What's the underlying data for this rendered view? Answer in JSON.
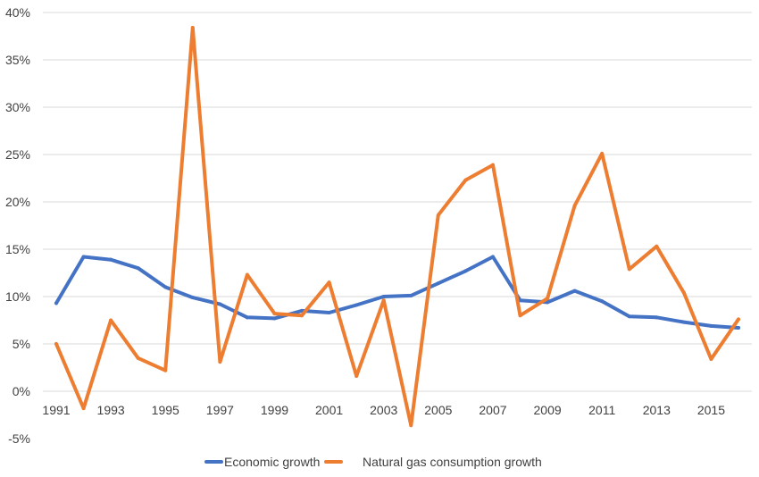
{
  "chart_data": {
    "type": "line",
    "title": "",
    "xlabel": "",
    "ylabel": "",
    "x": [
      1991,
      1992,
      1993,
      1994,
      1995,
      1996,
      1997,
      1998,
      1999,
      2000,
      2001,
      2002,
      2003,
      2004,
      2005,
      2006,
      2007,
      2008,
      2009,
      2010,
      2011,
      2012,
      2013,
      2014,
      2015,
      2016
    ],
    "x_tick_labels": [
      "1991",
      "1993",
      "1995",
      "1997",
      "1999",
      "2001",
      "2003",
      "2005",
      "2007",
      "2009",
      "2011",
      "2013",
      "2015"
    ],
    "y_tick_labels": [
      "-5%",
      "0%",
      "5%",
      "10%",
      "15%",
      "20%",
      "25%",
      "30%",
      "35%",
      "40%"
    ],
    "ylim": [
      -5,
      40
    ],
    "y_unit": "%",
    "grid": true,
    "legend_position": "bottom",
    "series": [
      {
        "name": "Economic growth",
        "color": "#4472c4",
        "values": [
          9.3,
          14.2,
          13.9,
          13.0,
          11.0,
          9.9,
          9.2,
          7.8,
          7.7,
          8.5,
          8.3,
          9.1,
          10.0,
          10.1,
          11.4,
          12.7,
          14.2,
          9.6,
          9.4,
          10.6,
          9.5,
          7.9,
          7.8,
          7.3,
          6.9,
          6.7
        ]
      },
      {
        "name": "Natural gas consumption growth",
        "color": "#ed7d31",
        "values": [
          5.0,
          -1.8,
          7.5,
          3.5,
          2.2,
          38.4,
          3.1,
          12.3,
          8.2,
          8.0,
          11.5,
          1.6,
          9.6,
          -3.6,
          18.6,
          22.3,
          23.9,
          8.0,
          9.8,
          19.6,
          25.1,
          12.9,
          15.3,
          10.4,
          3.4,
          7.6
        ]
      }
    ]
  }
}
